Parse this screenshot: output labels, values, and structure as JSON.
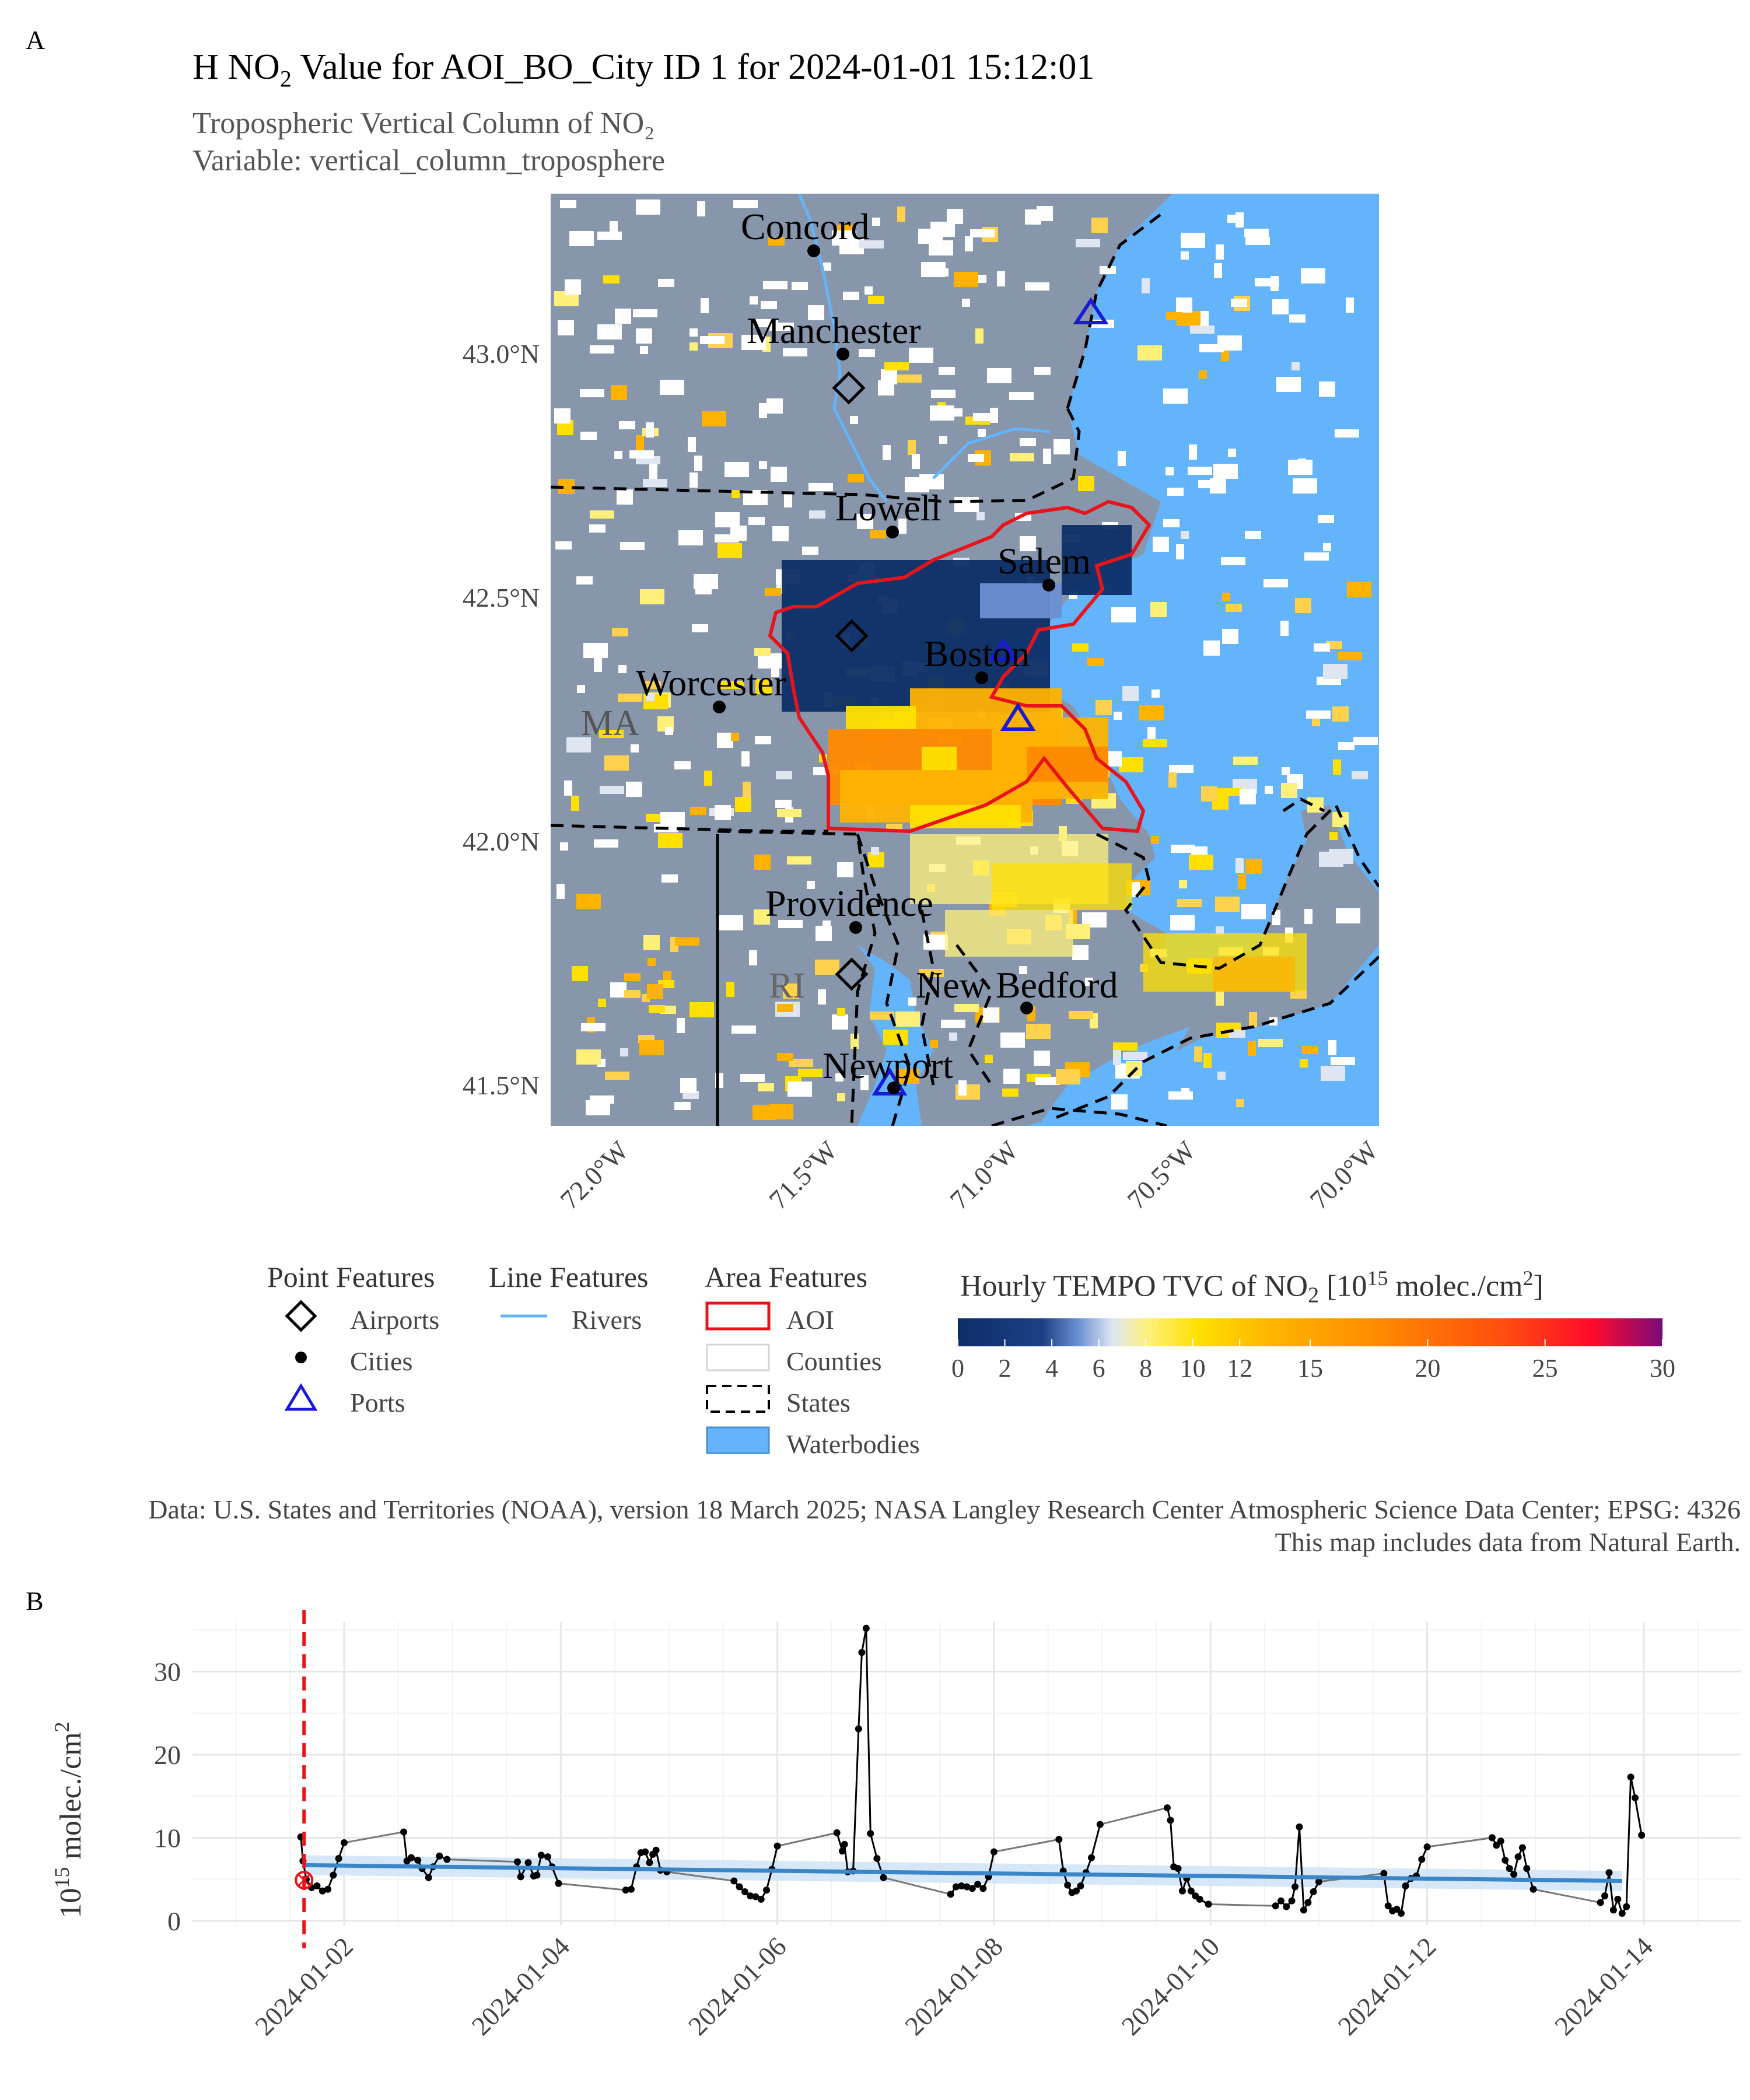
{
  "panel_a": {
    "tag": "A",
    "title_prefix": "H NO",
    "title_sub": "2",
    "title_suffix": " Value for AOI_BO_City ID 1 for 2024-01-01 15:12:01",
    "subtitle_line1": "Tropospheric Vertical Column of NO₂",
    "subtitle_line2": "Variable: vertical_column_troposphere",
    "lat_ticks": [
      "43.0°N",
      "42.5°N",
      "42.0°N",
      "41.5°N"
    ],
    "lon_ticks": [
      "72.0°W",
      "71.5°W",
      "71.0°W",
      "70.5°W",
      "70.0°W"
    ],
    "cities": [
      "Concord",
      "Manchester",
      "Lowell",
      "Salem",
      "Boston",
      "Worcester",
      "Providence",
      "New Bedford",
      "Newport"
    ],
    "state_labels": [
      "MA",
      "RI"
    ],
    "colors": {
      "water": "#63b4fb",
      "land": "#8796ab",
      "aoi": "#e8141c",
      "port": "#1a1ad6",
      "aoi_fill": "#0d2e66"
    }
  },
  "legend": {
    "point_title": "Point Features",
    "point_items": [
      "Airports",
      "Cities",
      "Ports"
    ],
    "line_title": "Line Features",
    "line_items": [
      "Rivers"
    ],
    "area_title": "Area Features",
    "area_items": [
      "AOI",
      "Counties",
      "States",
      "Waterbodies"
    ],
    "colorbar_title_prefix": "Hourly TEMPO TVC of NO",
    "colorbar_title_sub": "2",
    "colorbar_title_mid": " [10",
    "colorbar_title_sup1": "15",
    "colorbar_title_unit": " molec./cm",
    "colorbar_title_sup2": "2",
    "colorbar_title_end": "]",
    "colorbar_ticks": [
      "0",
      "2",
      "4",
      "6",
      "8",
      "10",
      "12",
      "15",
      "20",
      "25",
      "30"
    ],
    "colorbar_tick_values": [
      0,
      2,
      4,
      6,
      8,
      10,
      12,
      15,
      20,
      25,
      30
    ]
  },
  "caption": {
    "line1": "Data: U.S. States and Territories (NOAA), version 18 March 2025; NASA Langley Research Center Atmospheric Science Data Center; EPSG: 4326",
    "line2": "This map includes data from Natural Earth."
  },
  "chart_data": {
    "type": "line",
    "panel_tag": "B",
    "ylabel_base": "10",
    "ylabel_sup": "15",
    "ylabel_unit": " molec./cm",
    "ylabel_sup2": "2",
    "x_ticks": [
      "2024-01-02",
      "2024-01-04",
      "2024-01-06",
      "2024-01-08",
      "2024-01-10",
      "2024-01-12",
      "2024-01-14"
    ],
    "y_ticks": [
      0,
      10,
      20,
      30
    ],
    "xlim_days": [
      0.6,
      14.9
    ],
    "ylim": [
      -0.5,
      36
    ],
    "selected_day": 1.63,
    "selected_value": 4.9,
    "trend": [
      [
        1.63,
        6.7
      ],
      [
        13.8,
        4.8
      ]
    ],
    "trend_band": 1.2,
    "points": [
      [
        1.6,
        10.1
      ],
      [
        1.62,
        7.2
      ],
      [
        1.65,
        5.0
      ],
      [
        1.7,
        4.0
      ],
      [
        1.75,
        4.2
      ],
      [
        1.8,
        3.6
      ],
      [
        1.85,
        3.8
      ],
      [
        1.9,
        5.5
      ],
      [
        1.95,
        7.5
      ],
      [
        2.0,
        9.4
      ],
      [
        2.55,
        10.7
      ],
      [
        2.58,
        7.2
      ],
      [
        2.62,
        7.6
      ],
      [
        2.68,
        7.3
      ],
      [
        2.72,
        6.3
      ],
      [
        2.78,
        5.2
      ],
      [
        2.82,
        6.5
      ],
      [
        2.88,
        7.8
      ],
      [
        2.95,
        7.4
      ],
      [
        3.6,
        7.1
      ],
      [
        3.63,
        5.3
      ],
      [
        3.7,
        7.0
      ],
      [
        3.75,
        5.4
      ],
      [
        3.78,
        5.5
      ],
      [
        3.82,
        7.9
      ],
      [
        3.88,
        7.7
      ],
      [
        3.92,
        6.5
      ],
      [
        3.98,
        4.5
      ],
      [
        4.6,
        3.7
      ],
      [
        4.65,
        3.8
      ],
      [
        4.7,
        6.5
      ],
      [
        4.74,
        8.2
      ],
      [
        4.78,
        8.3
      ],
      [
        4.82,
        7.0
      ],
      [
        4.85,
        8.0
      ],
      [
        4.88,
        8.5
      ],
      [
        4.92,
        6.1
      ],
      [
        4.98,
        5.9
      ],
      [
        5.6,
        4.8
      ],
      [
        5.65,
        4.1
      ],
      [
        5.7,
        3.5
      ],
      [
        5.75,
        3.0
      ],
      [
        5.8,
        2.9
      ],
      [
        5.85,
        2.6
      ],
      [
        5.9,
        3.7
      ],
      [
        5.95,
        6.2
      ],
      [
        6.0,
        9.0
      ],
      [
        6.55,
        10.6
      ],
      [
        6.6,
        8.4
      ],
      [
        6.62,
        9.2
      ],
      [
        6.65,
        5.9
      ],
      [
        6.7,
        6.0
      ],
      [
        6.75,
        23.1
      ],
      [
        6.78,
        32.3
      ],
      [
        6.82,
        35.2
      ],
      [
        6.86,
        10.5
      ],
      [
        6.92,
        7.5
      ],
      [
        6.98,
        5.2
      ],
      [
        7.6,
        3.2
      ],
      [
        7.65,
        4.1
      ],
      [
        7.7,
        4.2
      ],
      [
        7.75,
        4.1
      ],
      [
        7.8,
        3.9
      ],
      [
        7.85,
        4.4
      ],
      [
        7.9,
        3.9
      ],
      [
        7.95,
        5.3
      ],
      [
        8.0,
        8.3
      ],
      [
        8.6,
        9.8
      ],
      [
        8.64,
        6.0
      ],
      [
        8.68,
        4.3
      ],
      [
        8.72,
        3.4
      ],
      [
        8.76,
        3.6
      ],
      [
        8.8,
        4.2
      ],
      [
        8.85,
        5.8
      ],
      [
        8.9,
        7.6
      ],
      [
        8.98,
        11.6
      ],
      [
        9.6,
        13.6
      ],
      [
        9.63,
        12.1
      ],
      [
        9.66,
        6.5
      ],
      [
        9.7,
        6.3
      ],
      [
        9.74,
        3.6
      ],
      [
        9.78,
        5.1
      ],
      [
        9.82,
        3.6
      ],
      [
        9.86,
        3.0
      ],
      [
        9.9,
        2.6
      ],
      [
        9.98,
        2.0
      ],
      [
        10.6,
        1.8
      ],
      [
        10.65,
        2.4
      ],
      [
        10.7,
        1.7
      ],
      [
        10.75,
        2.4
      ],
      [
        10.78,
        4.1
      ],
      [
        10.82,
        11.3
      ],
      [
        10.86,
        1.3
      ],
      [
        10.9,
        2.2
      ],
      [
        10.95,
        3.5
      ],
      [
        11.0,
        4.7
      ],
      [
        11.6,
        5.7
      ],
      [
        11.64,
        1.8
      ],
      [
        11.68,
        1.2
      ],
      [
        11.72,
        1.4
      ],
      [
        11.76,
        0.9
      ],
      [
        11.8,
        4.2
      ],
      [
        11.85,
        5.1
      ],
      [
        11.9,
        5.4
      ],
      [
        11.95,
        7.4
      ],
      [
        12.0,
        8.9
      ],
      [
        12.6,
        10.0
      ],
      [
        12.64,
        9.1
      ],
      [
        12.68,
        9.6
      ],
      [
        12.72,
        7.3
      ],
      [
        12.76,
        6.3
      ],
      [
        12.8,
        5.6
      ],
      [
        12.84,
        7.7
      ],
      [
        12.88,
        8.8
      ],
      [
        12.92,
        6.3
      ],
      [
        12.98,
        3.8
      ],
      [
        13.6,
        2.2
      ],
      [
        13.64,
        3.0
      ],
      [
        13.68,
        5.8
      ],
      [
        13.72,
        1.3
      ],
      [
        13.76,
        2.6
      ],
      [
        13.8,
        0.9
      ],
      [
        13.84,
        1.7
      ],
      [
        13.88,
        17.3
      ],
      [
        13.92,
        14.8
      ],
      [
        13.98,
        10.3
      ]
    ]
  }
}
